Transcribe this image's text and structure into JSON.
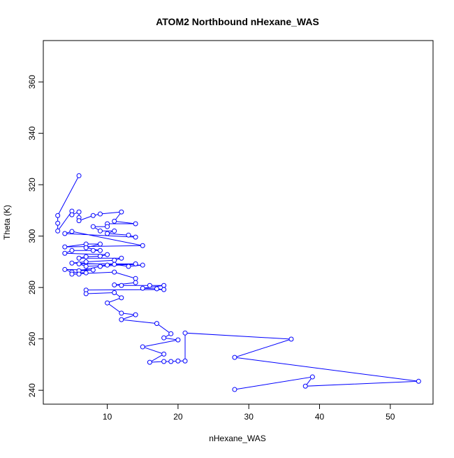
{
  "chart_data": {
    "type": "line",
    "title": "ATOM2 Northbound nHexane_WAS",
    "xlabel": "nHexane_WAS",
    "ylabel": "Theta (K)",
    "color": "#0000ff",
    "x": [
      6,
      3,
      3,
      3,
      5,
      5,
      6,
      6,
      6,
      8,
      9,
      12,
      11,
      14,
      10,
      10,
      8,
      9,
      11,
      10,
      13,
      14,
      4,
      5,
      15,
      4,
      7,
      9,
      7,
      9,
      8,
      5,
      4,
      10,
      9,
      7,
      6,
      12,
      11,
      7,
      5,
      15,
      13,
      11,
      10,
      7,
      6,
      14,
      9,
      6,
      8,
      4,
      5,
      7,
      6,
      5,
      11,
      14,
      14,
      11,
      12,
      16,
      18,
      15,
      17,
      18,
      7,
      7,
      11,
      12,
      10,
      12,
      14,
      12,
      17,
      19,
      18,
      20,
      15,
      18,
      16,
      18,
      19,
      20,
      21,
      21,
      36,
      28,
      54,
      38,
      39,
      28
    ],
    "values": [
      323.5,
      308,
      305,
      302,
      309.7,
      308.3,
      309.4,
      307.2,
      306,
      308,
      308.6,
      309.4,
      305.8,
      304.8,
      304.8,
      303.7,
      303.7,
      302,
      302,
      301,
      300.4,
      299.6,
      301,
      301.8,
      296.3,
      295.8,
      296.9,
      296.9,
      295.5,
      294.4,
      294.4,
      294.4,
      293.3,
      292.8,
      292.2,
      292,
      291.4,
      291.4,
      290.6,
      290,
      289.5,
      288.7,
      288.2,
      289,
      288.7,
      288.2,
      289.2,
      289.2,
      288.2,
      286.5,
      286.8,
      287,
      286,
      285.7,
      285.2,
      285.2,
      286,
      283.5,
      281.9,
      281,
      280.8,
      280.8,
      280.8,
      279.7,
      279.5,
      279.2,
      279,
      277.6,
      278,
      276,
      274,
      270,
      269.4,
      267.5,
      266,
      262,
      260.4,
      259.6,
      256.9,
      254.1,
      250.9,
      251.2,
      251.2,
      251.4,
      251.4,
      262.3,
      259.9,
      252.8,
      243.5,
      241.6,
      245.2,
      240.3
    ],
    "xlim": [
      0.96,
      56.04
    ],
    "ylim": [
      234.6,
      376.1
    ],
    "xticks": [
      10,
      20,
      30,
      40,
      50
    ],
    "yticks": [
      240,
      260,
      280,
      300,
      320,
      340,
      360
    ]
  }
}
